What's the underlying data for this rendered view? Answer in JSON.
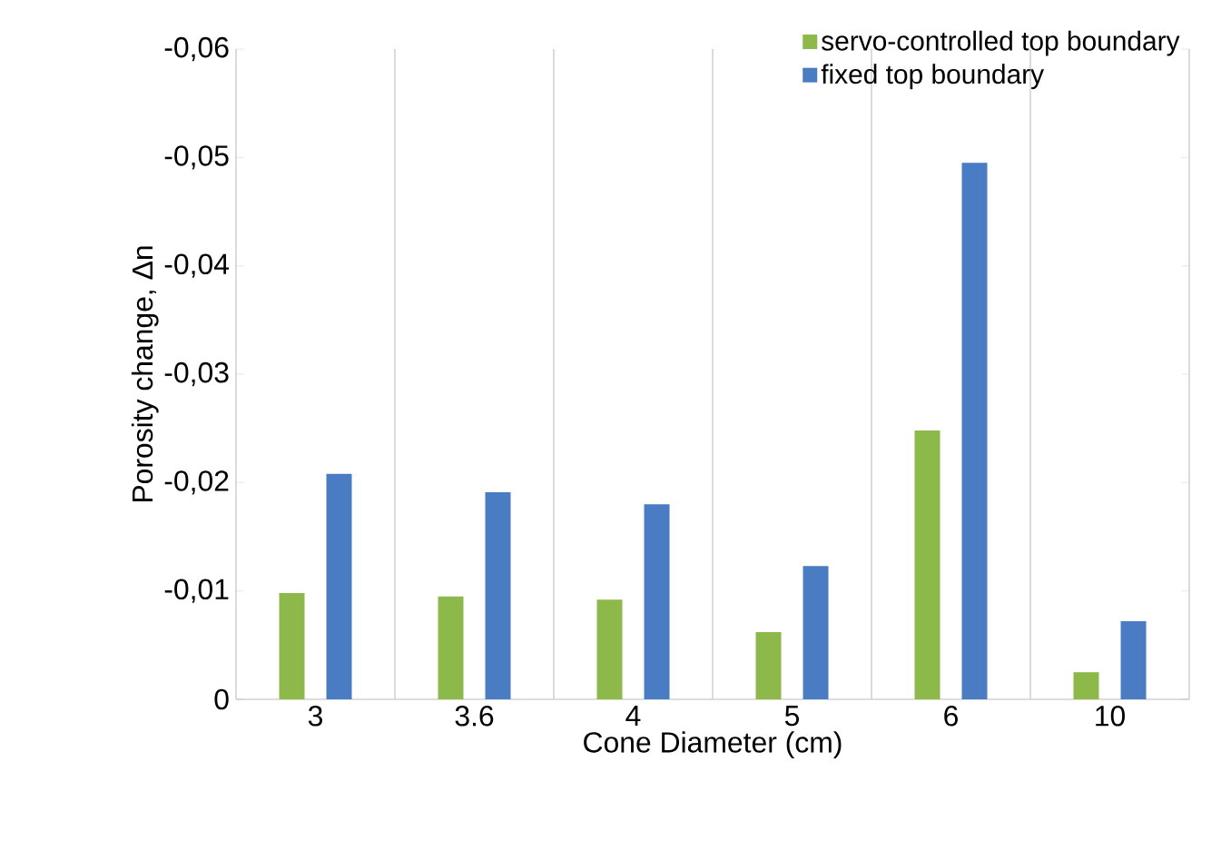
{
  "chart_data": {
    "type": "bar",
    "xlabel": "Cone Diameter (cm)",
    "ylabel": "Porosity change, Δn",
    "categories": [
      "3",
      "3.6",
      "4",
      "5",
      "6",
      "10"
    ],
    "series": [
      {
        "name": "servo-controlled top boundary",
        "color": "#8db94a",
        "values": [
          -0.0098,
          -0.0095,
          -0.0092,
          -0.0062,
          -0.0248,
          -0.0025
        ]
      },
      {
        "name": "fixed top boundary",
        "color": "#4a7cc4",
        "values": [
          -0.0208,
          -0.0191,
          -0.018,
          -0.0123,
          -0.0495,
          -0.0072
        ]
      }
    ],
    "ylim": [
      0,
      -0.06
    ],
    "yticks": [
      0,
      {
        "value": -0.01,
        "label": "-0,01"
      },
      {
        "value": -0.02,
        "label": "-0,02"
      },
      {
        "value": -0.03,
        "label": "-0,03"
      },
      {
        "value": -0.04,
        "label": "-0,04"
      },
      {
        "value": -0.05,
        "label": "-0,05"
      },
      {
        "value": -0.06,
        "label": "-0,06"
      }
    ],
    "grid": "x",
    "legend": "top right"
  }
}
